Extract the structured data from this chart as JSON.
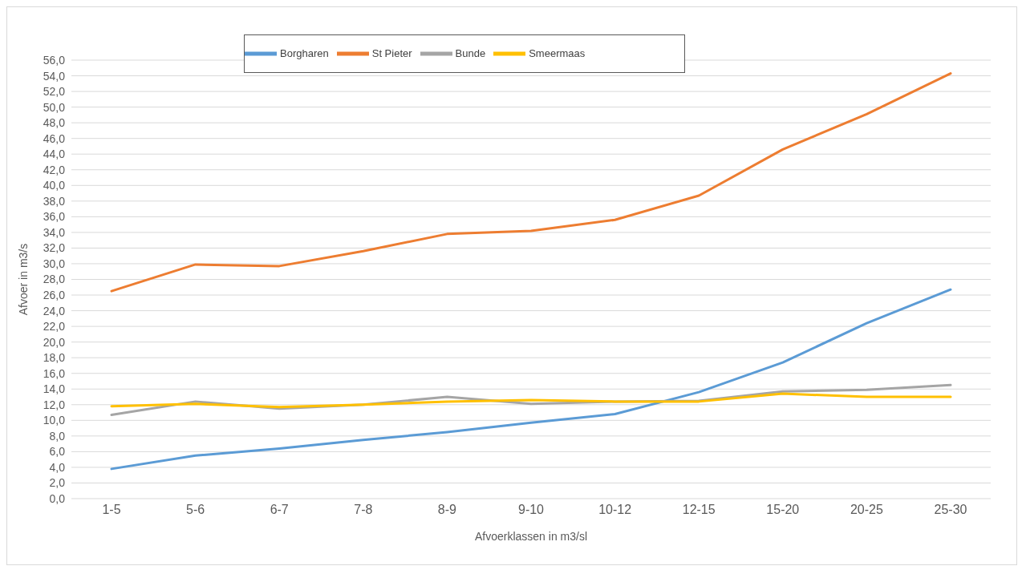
{
  "chart_data": {
    "type": "line",
    "xlabel": "Afvoerklassen in m3/sl",
    "ylabel": "Afvoer in m3/s",
    "categories": [
      "1-5",
      "5-6",
      "6-7",
      "7-8",
      "8-9",
      "9-10",
      "10-12",
      "12-15",
      "15-20",
      "20-25",
      "25-30"
    ],
    "series": [
      {
        "name": "Borgharen",
        "color": "#5b9bd5",
        "values": [
          3.8,
          5.5,
          6.4,
          7.5,
          8.5,
          9.7,
          10.8,
          13.6,
          17.4,
          22.4,
          26.7
        ]
      },
      {
        "name": "St Pieter",
        "color": "#ed7d31",
        "values": [
          26.5,
          29.9,
          29.7,
          31.6,
          33.8,
          34.2,
          35.6,
          38.7,
          44.6,
          49.1,
          54.3
        ]
      },
      {
        "name": "Bunde",
        "color": "#a5a5a5",
        "values": [
          10.7,
          12.4,
          11.5,
          12.0,
          13.0,
          12.1,
          12.4,
          12.5,
          13.7,
          13.9,
          14.5
        ]
      },
      {
        "name": "Smeermaas",
        "color": "#ffc000",
        "values": [
          11.8,
          12.1,
          11.7,
          12.0,
          12.4,
          12.6,
          12.4,
          12.4,
          13.4,
          13.0,
          13.0
        ]
      }
    ],
    "ylim": [
      0,
      56
    ],
    "yticks": [
      {
        "value": 0,
        "label": "0,0"
      },
      {
        "value": 2,
        "label": "2,0"
      },
      {
        "value": 4,
        "label": "4,0"
      },
      {
        "value": 6,
        "label": "6,0"
      },
      {
        "value": 8,
        "label": "8,0"
      },
      {
        "value": 10,
        "label": "10,0"
      },
      {
        "value": 12,
        "label": "12,0"
      },
      {
        "value": 14,
        "label": "14,0"
      },
      {
        "value": 16,
        "label": "16,0"
      },
      {
        "value": 18,
        "label": "18,0"
      },
      {
        "value": 20,
        "label": "20,0"
      },
      {
        "value": 22,
        "label": "22,0"
      },
      {
        "value": 24,
        "label": "24,0"
      },
      {
        "value": 26,
        "label": "26,0"
      },
      {
        "value": 28,
        "label": "28,0"
      },
      {
        "value": 30,
        "label": "30,0"
      },
      {
        "value": 32,
        "label": "32,0"
      },
      {
        "value": 34,
        "label": "34,0"
      },
      {
        "value": 36,
        "label": "36,0"
      },
      {
        "value": 38,
        "label": "38,0"
      },
      {
        "value": 40,
        "label": "40,0"
      },
      {
        "value": 42,
        "label": "42,0"
      },
      {
        "value": 44,
        "label": "44,0"
      },
      {
        "value": 46,
        "label": "46,0"
      },
      {
        "value": 48,
        "label": "48,0"
      },
      {
        "value": 50,
        "label": "50,0"
      },
      {
        "value": 52,
        "label": "52,0"
      },
      {
        "value": 54,
        "label": "54,0"
      },
      {
        "value": 56,
        "label": "56,0"
      }
    ],
    "grid": "y",
    "legend": "top",
    "marker": "none",
    "line_style": "solid"
  }
}
